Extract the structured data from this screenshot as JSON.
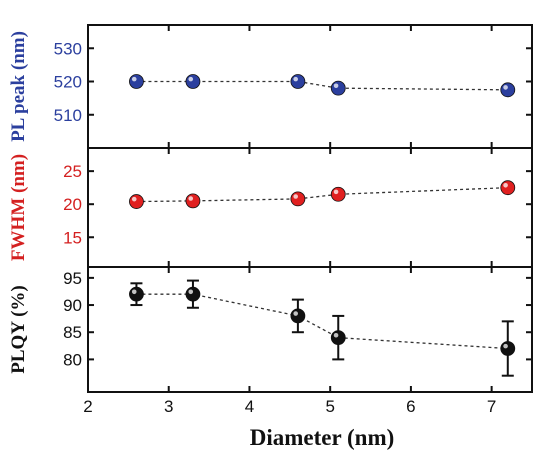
{
  "colors": {
    "pl_peak": "#2b3f9e",
    "fwhm": "#e02020",
    "plqy": "#111111",
    "pl_peak_label": "#2b3f9e",
    "fwhm_label": "#d42020",
    "plqy_label": "#111111"
  },
  "chart_data": [
    {
      "type": "scatter",
      "panel": "top",
      "x": [
        2.6,
        3.3,
        4.6,
        5.1,
        7.2
      ],
      "y": [
        520,
        520,
        520,
        518,
        517.5
      ],
      "ylabel": "PL peak (nm)",
      "ylim": [
        500,
        537
      ],
      "yticks": [
        510,
        520,
        530
      ],
      "xlim": [
        2,
        7.5
      ],
      "marker_color": "pl_peak",
      "connecting_line": "dotted"
    },
    {
      "type": "scatter",
      "panel": "middle",
      "x": [
        2.6,
        3.3,
        4.6,
        5.1,
        7.2
      ],
      "y": [
        20.4,
        20.5,
        20.8,
        21.5,
        22.5
      ],
      "ylabel": "FWHM (nm)",
      "ylim": [
        10.5,
        28.5
      ],
      "yticks": [
        15,
        20,
        25
      ],
      "xlim": [
        2,
        7.5
      ],
      "marker_color": "fwhm",
      "connecting_line": "dotted"
    },
    {
      "type": "scatter",
      "panel": "bottom",
      "x": [
        2.6,
        3.3,
        4.6,
        5.1,
        7.2
      ],
      "y": [
        92,
        92,
        88,
        84,
        82
      ],
      "yerr": [
        2,
        2.5,
        3,
        4,
        5
      ],
      "ylabel": "PLQY (%)",
      "ylim": [
        74,
        97
      ],
      "yticks": [
        80,
        85,
        90,
        95
      ],
      "xlim": [
        2,
        7.5
      ],
      "xticks": [
        2,
        3,
        4,
        5,
        6,
        7
      ],
      "xlabel": "Diameter (nm)",
      "marker_color": "plqy",
      "connecting_line": "dotted"
    }
  ]
}
